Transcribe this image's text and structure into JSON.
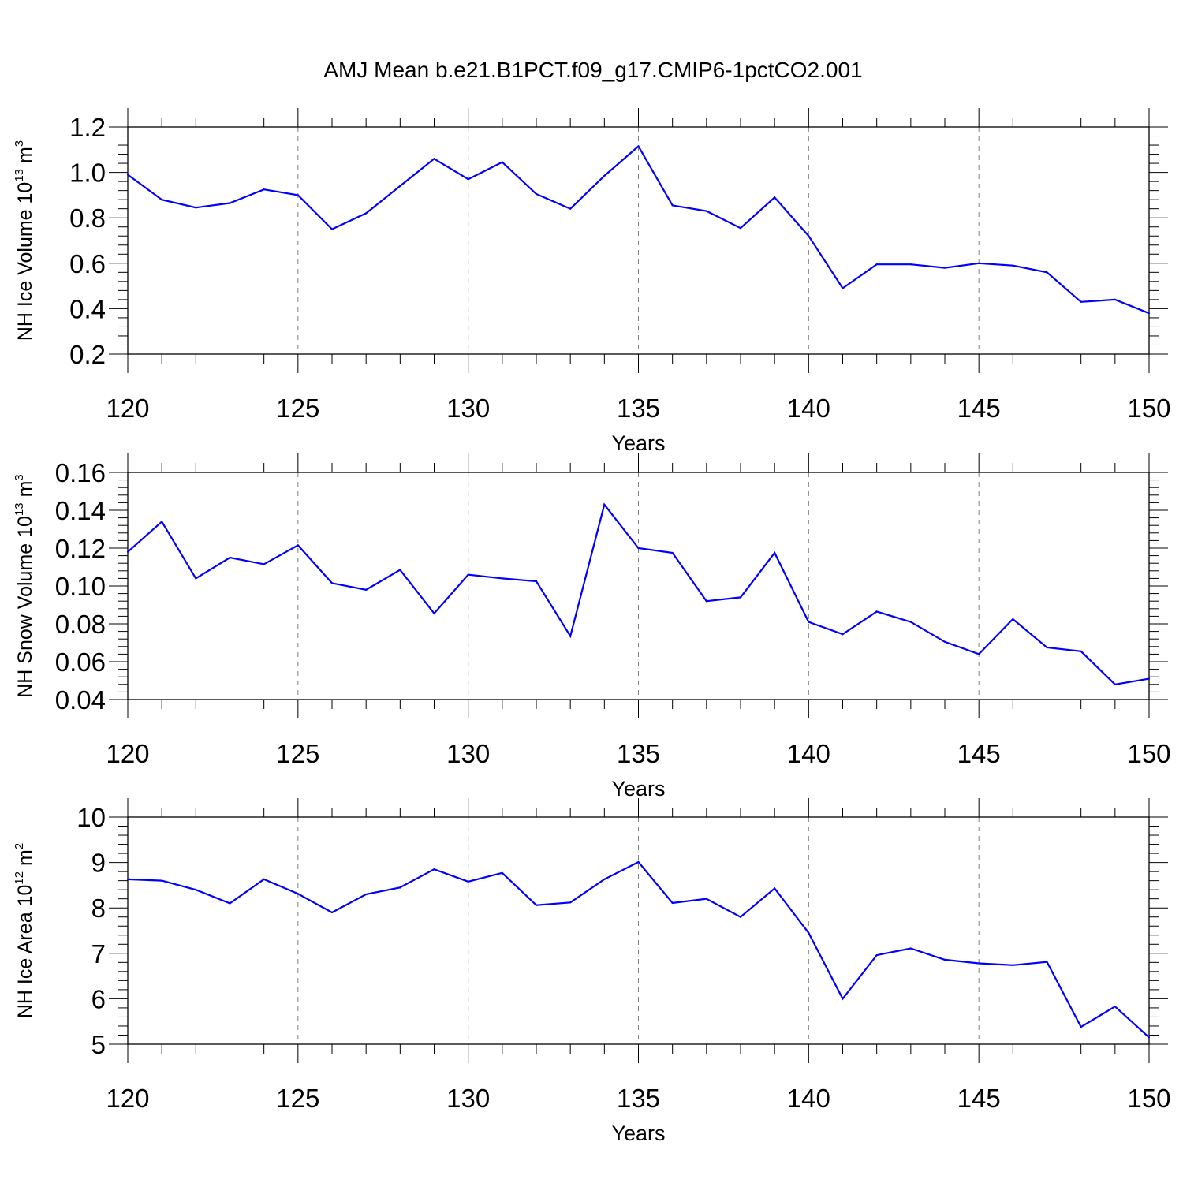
{
  "title": "AMJ Mean b.e21.B1PCT.f09_g17.CMIP6-1pctCO2.001",
  "colors": {
    "series": "#0000ff",
    "axis": "#000000",
    "grid": "#808080"
  },
  "chart_data": [
    {
      "type": "line",
      "ylabel": {
        "prefix": "NH Ice Volume 10",
        "exp": "13",
        "unit": " m",
        "unit_exp": "3"
      },
      "xlabel": "Years",
      "xlim": [
        120,
        150
      ],
      "ylim": [
        0.2,
        1.2
      ],
      "xticks": [
        120,
        125,
        130,
        135,
        140,
        145,
        150
      ],
      "xticklabels": [
        "120",
        "125",
        "130",
        "135",
        "140",
        "145",
        "150"
      ],
      "yticks": [
        0.2,
        0.4,
        0.6,
        0.8,
        1.0,
        1.2
      ],
      "yticklabels": [
        "0.2",
        "0.4",
        "0.6",
        "0.8",
        "1.0",
        "1.2"
      ],
      "grid": "x-dashed",
      "series": [
        {
          "name": "NH Ice Volume",
          "x": [
            120,
            121,
            122,
            123,
            124,
            125,
            126,
            127,
            128,
            129,
            130,
            131,
            132,
            133,
            134,
            135,
            136,
            137,
            138,
            139,
            140,
            141,
            142,
            143,
            144,
            145,
            146,
            147,
            148,
            149,
            150
          ],
          "values": [
            0.99,
            0.88,
            0.845,
            0.865,
            0.925,
            0.9,
            0.75,
            0.82,
            0.94,
            1.06,
            0.97,
            1.045,
            0.905,
            0.84,
            0.985,
            1.115,
            0.855,
            0.83,
            0.755,
            0.89,
            0.72,
            0.49,
            0.595,
            0.595,
            0.58,
            0.6,
            0.59,
            0.56,
            0.43,
            0.44,
            0.38
          ]
        }
      ]
    },
    {
      "type": "line",
      "ylabel": {
        "prefix": "NH Snow Volume 10",
        "exp": "13",
        "unit": " m",
        "unit_exp": "3"
      },
      "xlabel": "Years",
      "xlim": [
        120,
        150
      ],
      "ylim": [
        0.04,
        0.16
      ],
      "xticks": [
        120,
        125,
        130,
        135,
        140,
        145,
        150
      ],
      "xticklabels": [
        "120",
        "125",
        "130",
        "135",
        "140",
        "145",
        "150"
      ],
      "yticks": [
        0.04,
        0.06,
        0.08,
        0.1,
        0.12,
        0.14,
        0.16
      ],
      "yticklabels": [
        "0.04",
        "0.06",
        "0.08",
        "0.10",
        "0.12",
        "0.14",
        "0.16"
      ],
      "grid": "x-dashed",
      "series": [
        {
          "name": "NH Snow Volume",
          "x": [
            120,
            121,
            122,
            123,
            124,
            125,
            126,
            127,
            128,
            129,
            130,
            131,
            132,
            133,
            134,
            135,
            136,
            137,
            138,
            139,
            140,
            141,
            142,
            143,
            144,
            145,
            146,
            147,
            148,
            149,
            150
          ],
          "values": [
            0.118,
            0.134,
            0.104,
            0.115,
            0.1115,
            0.1215,
            0.1015,
            0.098,
            0.1085,
            0.0855,
            0.106,
            0.104,
            0.1025,
            0.0735,
            0.143,
            0.12,
            0.1175,
            0.092,
            0.094,
            0.1175,
            0.081,
            0.0745,
            0.0865,
            0.081,
            0.0705,
            0.064,
            0.0825,
            0.0675,
            0.0655,
            0.048,
            0.051
          ]
        }
      ]
    },
    {
      "type": "line",
      "ylabel": {
        "prefix": "NH Ice Area 10",
        "exp": "12",
        "unit": " m",
        "unit_exp": "2"
      },
      "xlabel": "Years",
      "xlim": [
        120,
        150
      ],
      "ylim": [
        5,
        10
      ],
      "xticks": [
        120,
        125,
        130,
        135,
        140,
        145,
        150
      ],
      "xticklabels": [
        "120",
        "125",
        "130",
        "135",
        "140",
        "145",
        "150"
      ],
      "yticks": [
        5,
        6,
        7,
        8,
        9,
        10
      ],
      "yticklabels": [
        "5",
        "6",
        "7",
        "8",
        "9",
        "10"
      ],
      "grid": "x-dashed",
      "series": [
        {
          "name": "NH Ice Area",
          "x": [
            120,
            121,
            122,
            123,
            124,
            125,
            126,
            127,
            128,
            129,
            130,
            131,
            132,
            133,
            134,
            135,
            136,
            137,
            138,
            139,
            140,
            141,
            142,
            143,
            144,
            145,
            146,
            147,
            148,
            149,
            150
          ],
          "values": [
            8.63,
            8.6,
            8.4,
            8.1,
            8.63,
            8.31,
            7.9,
            8.3,
            8.45,
            8.85,
            8.58,
            8.77,
            8.06,
            8.12,
            8.63,
            9.01,
            8.11,
            8.2,
            7.8,
            8.43,
            7.45,
            6.0,
            6.96,
            7.11,
            6.86,
            6.78,
            6.74,
            6.81,
            5.38,
            5.83,
            5.15
          ]
        }
      ]
    }
  ]
}
